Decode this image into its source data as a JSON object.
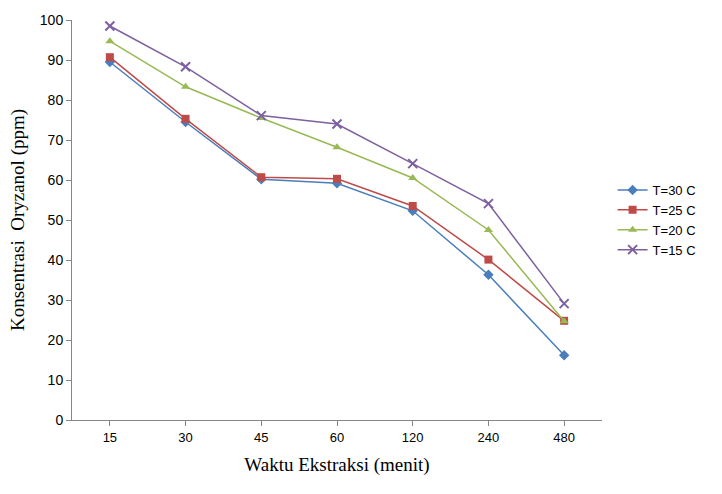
{
  "chart_data": {
    "type": "line",
    "x_label": "Waktu Ekstraksi (menit)",
    "y_label": "Konsentrasi  Oryzanol (ppm)",
    "categories": [
      "15",
      "30",
      "45",
      "60",
      "120",
      "240",
      "480"
    ],
    "series": [
      {
        "name": "T=30 C",
        "color": "#4a7ebb",
        "marker": "diamond",
        "values": [
          89.5,
          74.5,
          60.2,
          59.2,
          52.3,
          36.3,
          16.2
        ]
      },
      {
        "name": "T=25 C",
        "color": "#be4b48",
        "marker": "square",
        "values": [
          90.7,
          75.3,
          60.7,
          60.3,
          53.5,
          40.1,
          24.8
        ]
      },
      {
        "name": "T=20 C",
        "color": "#98b954",
        "marker": "triangle",
        "values": [
          94.7,
          83.3,
          75.5,
          68.2,
          60.5,
          47.5,
          24.7
        ]
      },
      {
        "name": "T=15 C",
        "color": "#7d60a0",
        "marker": "x",
        "values": [
          98.5,
          88.3,
          76.1,
          74.0,
          64.1,
          54.1,
          29.1
        ]
      }
    ],
    "ylim": [
      0,
      100
    ],
    "yticks": [
      0,
      10,
      20,
      30,
      40,
      50,
      60,
      70,
      80,
      90,
      100
    ],
    "grid": false,
    "legend": "right"
  }
}
